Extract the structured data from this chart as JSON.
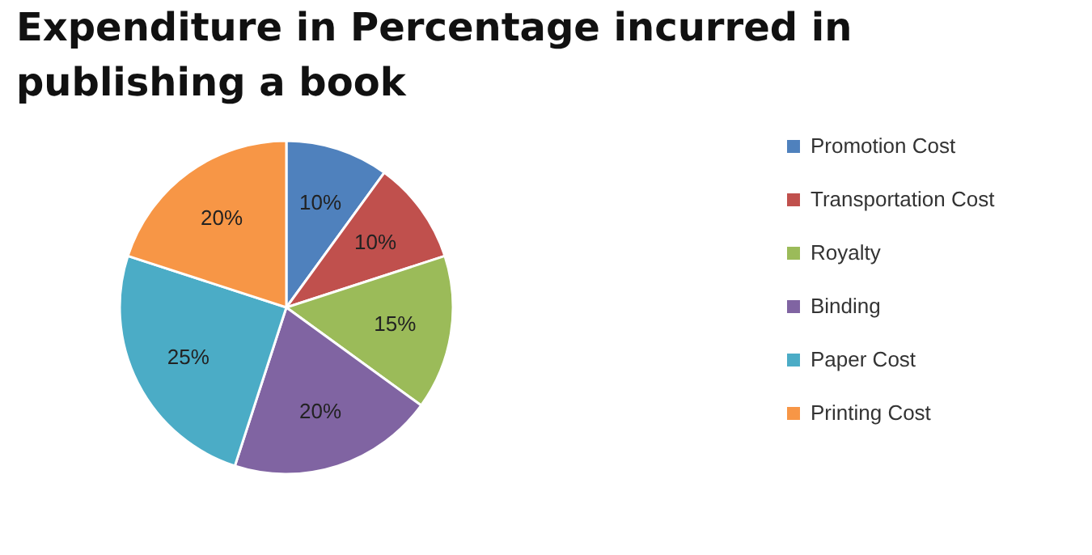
{
  "chart_data": {
    "type": "pie",
    "title": "Expenditure in Percentage incurred in publishing a book",
    "categories": [
      "Promotion Cost",
      "Transportation Cost",
      "Royalty",
      "Binding",
      "Paper Cost",
      "Printing Cost"
    ],
    "values": [
      10,
      10,
      15,
      20,
      25,
      20
    ],
    "value_labels": [
      "10%",
      "10%",
      "15%",
      "20%",
      "25%",
      "20%"
    ],
    "colors": [
      "#4f81bd",
      "#c0504d",
      "#9bbb59",
      "#8064a2",
      "#4bacc6",
      "#f79646"
    ],
    "legend": "right"
  }
}
